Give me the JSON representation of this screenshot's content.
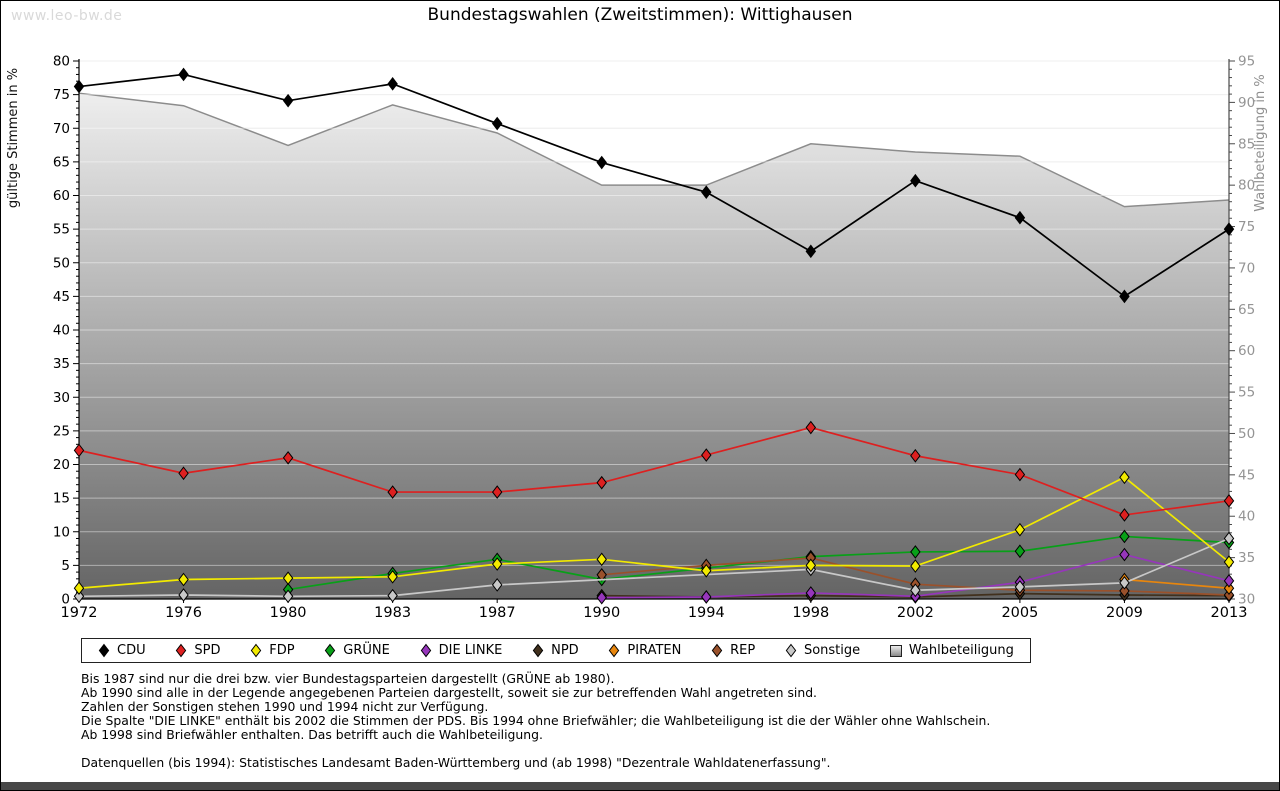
{
  "watermark": "www.leo-bw.de",
  "title": "Bundestagswahlen (Zweitstimmen): Wittighausen",
  "axes": {
    "left_label": "gültige Stimmen in %",
    "right_label": "Wahlbeteiligung in %",
    "left_min": 0,
    "left_max": 80,
    "left_step": 5,
    "right_min": 30,
    "right_max": 95,
    "right_step": 5
  },
  "chart_data": {
    "type": "line",
    "x": [
      1972,
      1976,
      1980,
      1983,
      1987,
      1990,
      1994,
      1998,
      2002,
      2005,
      2009,
      2013
    ],
    "xlabel": "",
    "ylabel_left": "gültige Stimmen in %",
    "ylabel_right": "Wahlbeteiligung in %",
    "ylim_left": [
      0,
      80
    ],
    "ylim_right": [
      30,
      95
    ],
    "grid": true,
    "legend_position": "bottom",
    "series": [
      {
        "name": "CDU",
        "color": "#000000",
        "axis": "left",
        "kind": "line",
        "z": 9,
        "values": [
          76.2,
          78.0,
          74.1,
          76.6,
          70.7,
          64.9,
          60.5,
          51.7,
          62.2,
          56.7,
          45.0,
          55.0
        ]
      },
      {
        "name": "SPD",
        "color": "#dd2020",
        "axis": "left",
        "kind": "line",
        "z": 8,
        "values": [
          22.1,
          18.7,
          21.0,
          15.9,
          15.9,
          17.3,
          21.4,
          25.5,
          21.3,
          18.5,
          12.5,
          14.6
        ]
      },
      {
        "name": "FDP",
        "color": "#f2ea00",
        "axis": "left",
        "kind": "line",
        "z": 7,
        "values": [
          1.6,
          2.9,
          3.1,
          3.3,
          5.2,
          5.9,
          4.2,
          5.0,
          4.9,
          10.3,
          18.1,
          5.5
        ]
      },
      {
        "name": "GRÜNE",
        "color": "#08a018",
        "axis": "left",
        "kind": "line",
        "z": 2,
        "values": [
          null,
          null,
          1.4,
          3.8,
          5.9,
          2.9,
          4.6,
          6.3,
          7.0,
          7.1,
          9.3,
          8.4
        ]
      },
      {
        "name": "DIE LINKE",
        "color": "#9636bb",
        "axis": "left",
        "kind": "line",
        "z": 5,
        "values": [
          null,
          null,
          null,
          null,
          null,
          0.2,
          0.3,
          0.9,
          0.4,
          2.5,
          6.6,
          2.7
        ]
      },
      {
        "name": "NPD",
        "color": "#41301d",
        "axis": "left",
        "kind": "line",
        "z": 1,
        "values": [
          null,
          null,
          null,
          null,
          null,
          0.5,
          0.3,
          0.5,
          0.3,
          0.8,
          0.6,
          0.5
        ]
      },
      {
        "name": "PIRATEN",
        "color": "#e8860d",
        "axis": "left",
        "kind": "line",
        "z": 4,
        "values": [
          null,
          null,
          null,
          null,
          null,
          null,
          null,
          null,
          null,
          null,
          2.9,
          1.6
        ]
      },
      {
        "name": "REP",
        "color": "#9a512b",
        "axis": "left",
        "kind": "line",
        "z": 3,
        "values": [
          null,
          null,
          null,
          null,
          null,
          3.6,
          5.0,
          6.1,
          2.2,
          1.3,
          1.2,
          0.6
        ]
      },
      {
        "name": "Sonstige",
        "color": "#c8c8c8",
        "axis": "left",
        "kind": "line",
        "z": 6,
        "values": [
          0.4,
          0.6,
          0.4,
          0.5,
          2.1,
          null,
          null,
          4.4,
          1.3,
          1.8,
          2.4,
          9.0
        ]
      },
      {
        "name": "Wahlbeteiligung",
        "color": "#8c8c8c",
        "axis": "right",
        "kind": "area",
        "z": 0,
        "values": [
          91.1,
          89.6,
          84.8,
          89.7,
          86.3,
          80.0,
          80.0,
          85.0,
          84.0,
          83.5,
          77.4,
          78.2
        ]
      }
    ]
  },
  "legend": [
    {
      "label": "CDU",
      "marker": "diamond",
      "color": "#000000"
    },
    {
      "label": "SPD",
      "marker": "diamond",
      "color": "#dd2020"
    },
    {
      "label": "FDP",
      "marker": "diamond",
      "color": "#f2ea00"
    },
    {
      "label": "GRÜNE",
      "marker": "diamond",
      "color": "#08a018"
    },
    {
      "label": "DIE LINKE",
      "marker": "diamond",
      "color": "#9636bb"
    },
    {
      "label": "NPD",
      "marker": "diamond",
      "color": "#41301d"
    },
    {
      "label": "PIRATEN",
      "marker": "diamond",
      "color": "#e8860d"
    },
    {
      "label": "REP",
      "marker": "diamond",
      "color": "#9a512b"
    },
    {
      "label": "Sonstige",
      "marker": "diamond",
      "color": "#c8c8c8"
    },
    {
      "label": "Wahlbeteiligung",
      "marker": "square",
      "color": "#aaaaaa"
    }
  ],
  "notes": [
    "Bis 1987 sind nur die drei bzw. vier Bundestagsparteien dargestellt (GRÜNE ab 1980).",
    "Ab 1990 sind alle in der Legende angegebenen Parteien dargestellt, soweit sie zur betreffenden Wahl angetreten sind.",
    "Zahlen der Sonstigen stehen 1990 und 1994 nicht zur Verfügung.",
    "Die Spalte \"DIE LINKE\" enthält bis 2002 die Stimmen der PDS. Bis 1994 ohne Briefwähler; die Wahlbeteiligung ist die der Wähler ohne Wahlschein.",
    "Ab 1998 sind Briefwähler enthalten. Das betrifft auch die Wahlbeteiligung."
  ],
  "source": "Datenquellen (bis 1994): Statistisches Landesamt Baden-Württemberg und (ab 1998) \"Dezentrale Wahldatenerfassung\"."
}
